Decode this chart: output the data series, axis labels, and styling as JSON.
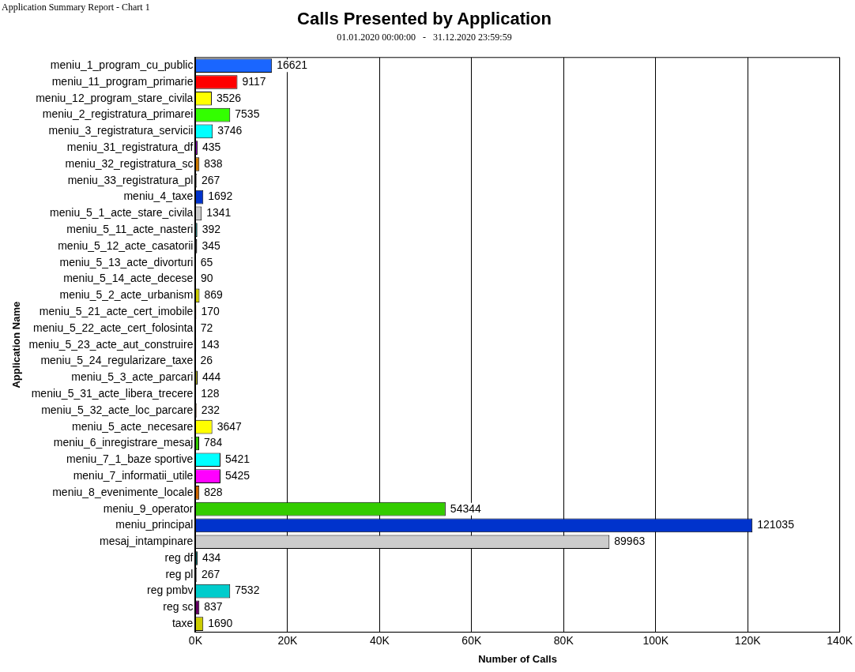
{
  "chart_data": {
    "type": "bar",
    "orientation": "horizontal",
    "title": "Calls Presented by Application",
    "subtitle": "01.01.2020 00:00:00   -   31.12.2020 23:59:59",
    "xlabel": "Number of Calls",
    "ylabel": "Application Name",
    "annotations": [
      "Application Summary Report - Chart 1"
    ],
    "categories": [
      "meniu_1_program_cu_public",
      "meniu_11_program_primarie",
      "meniu_12_program_stare_civila",
      "meniu_2_registratura_primarei",
      "meniu_3_registratura_servicii",
      "meniu_31_registratura_df",
      "meniu_32_registratura_sc",
      "meniu_33_registratura_pl",
      "meniu_4_taxe",
      "meniu_5_1_acte_stare_civila",
      "meniu_5_11_acte_nasteri",
      "meniu_5_12_acte_casatorii",
      "meniu_5_13_acte_divorturi",
      "meniu_5_14_acte_decese",
      "meniu_5_2_acte_urbanism",
      "meniu_5_21_acte_cert_imobile",
      "meniu_5_22_acte_cert_folosinta",
      "meniu_5_23_acte_aut_construire",
      "meniu_5_24_regularizare_taxe",
      "meniu_5_3_acte_parcari",
      "meniu_5_31_acte_libera_trecere",
      "meniu_5_32_acte_loc_parcare",
      "meniu_5_acte_necesare",
      "meniu_6_inregistrare_mesaj",
      "meniu_7_1_baze sportive",
      "meniu_7_informatii_utile",
      "meniu_8_evenimente_locale",
      "meniu_9_operator",
      "meniu_principal",
      "mesaj_intampinare",
      "reg df",
      "reg pl",
      "reg pmbv",
      "reg sc",
      "taxe"
    ],
    "values": [
      16621,
      9117,
      3526,
      7535,
      3746,
      435,
      838,
      267,
      1692,
      1341,
      392,
      345,
      65,
      90,
      869,
      170,
      72,
      143,
      26,
      444,
      128,
      232,
      3647,
      784,
      5421,
      5425,
      828,
      54344,
      121035,
      89963,
      434,
      267,
      7532,
      837,
      1690
    ],
    "colors": [
      "#1a66ff",
      "#ff0000",
      "#ffff00",
      "#33ff00",
      "#00ffff",
      "#9900cc",
      "#cc7a00",
      "#a0a0a0",
      "#0033cc",
      "#cccccc",
      "#006666",
      "#000000",
      "#ff9999",
      "#99cc00",
      "#cccc00",
      "#ff6600",
      "#6699ff",
      "#999999",
      "#cc99ff",
      "#cccc33",
      "#ff0099",
      "#996633",
      "#ffff00",
      "#33cc00",
      "#00ffff",
      "#ff00ff",
      "#cc6600",
      "#33cc00",
      "#0033cc",
      "#cccccc",
      "#006666",
      "#999999",
      "#00cccc",
      "#660066",
      "#cccc00"
    ],
    "xlim": [
      0,
      140000
    ],
    "xticks": [
      {
        "value": 0,
        "label": "0K"
      },
      {
        "value": 20000,
        "label": "20K"
      },
      {
        "value": 40000,
        "label": "40K"
      },
      {
        "value": 60000,
        "label": "60K"
      },
      {
        "value": 80000,
        "label": "80K"
      },
      {
        "value": 100000,
        "label": "100K"
      },
      {
        "value": 120000,
        "label": "120K"
      },
      {
        "value": 140000,
        "label": "140K"
      }
    ],
    "grid": "x",
    "data_labels": true,
    "legend": false
  }
}
